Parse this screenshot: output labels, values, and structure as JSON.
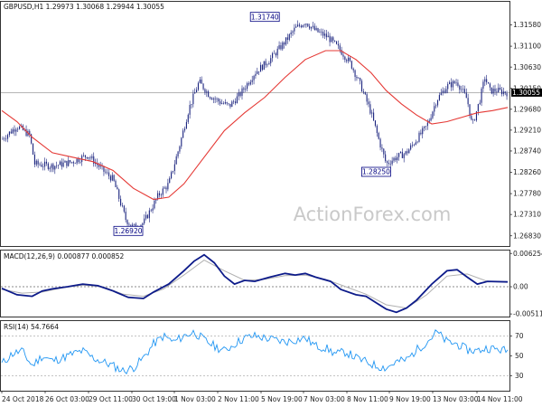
{
  "chart_data": [
    {
      "type": "candlestick",
      "symbol_info": "GBPUSD,H1  1.29973 1.30068 1.29944 1.30055",
      "watermark": "ActionForex.com",
      "ylim": [
        1.266,
        1.321
      ],
      "y_ticks": [
        "1.31580",
        "1.31100",
        "1.30630",
        "1.30150",
        "1.29680",
        "1.29210",
        "1.28740",
        "1.28260",
        "1.27780",
        "1.27310",
        "1.26830"
      ],
      "current_price": "1.30055",
      "price_labels": [
        {
          "text": "1.31740",
          "x": 0.52,
          "value": 1.3174
        },
        {
          "text": "1.28250",
          "x": 0.74,
          "value": 1.2825
        },
        {
          "text": "1.26920",
          "x": 0.25,
          "value": 1.2692
        }
      ],
      "price_path": [
        [
          0.0,
          1.29
        ],
        [
          0.03,
          1.293
        ],
        [
          0.055,
          1.291
        ],
        [
          0.065,
          1.2845
        ],
        [
          0.1,
          1.284
        ],
        [
          0.14,
          1.285
        ],
        [
          0.17,
          1.2865
        ],
        [
          0.2,
          1.283
        ],
        [
          0.22,
          1.281
        ],
        [
          0.245,
          1.272
        ],
        [
          0.26,
          1.2702
        ],
        [
          0.28,
          1.2712
        ],
        [
          0.31,
          1.2775
        ],
        [
          0.33,
          1.28
        ],
        [
          0.35,
          1.288
        ],
        [
          0.37,
          1.297
        ],
        [
          0.39,
          1.303
        ],
        [
          0.41,
          1.3
        ],
        [
          0.43,
          1.2985
        ],
        [
          0.45,
          1.2975
        ],
        [
          0.47,
          1.3
        ],
        [
          0.5,
          1.305
        ],
        [
          0.53,
          1.308
        ],
        [
          0.56,
          1.312
        ],
        [
          0.58,
          1.315
        ],
        [
          0.6,
          1.3165
        ],
        [
          0.62,
          1.3145
        ],
        [
          0.645,
          1.313
        ],
        [
          0.67,
          1.31
        ],
        [
          0.69,
          1.307
        ],
        [
          0.71,
          1.302
        ],
        [
          0.73,
          1.296
        ],
        [
          0.745,
          1.29
        ],
        [
          0.76,
          1.2845
        ],
        [
          0.78,
          1.286
        ],
        [
          0.8,
          1.287
        ],
        [
          0.82,
          1.29
        ],
        [
          0.84,
          1.293
        ],
        [
          0.86,
          1.299
        ],
        [
          0.88,
          1.302
        ],
        [
          0.9,
          1.303
        ],
        [
          0.92,
          1.299
        ],
        [
          0.93,
          1.293
        ],
        [
          0.945,
          1.299
        ],
        [
          0.955,
          1.304
        ],
        [
          0.965,
          1.301
        ],
        [
          0.98,
          1.301
        ],
        [
          1.0,
          1.3005
        ]
      ],
      "ma_path": [
        [
          0.0,
          1.2965
        ],
        [
          0.03,
          1.294
        ],
        [
          0.06,
          1.2905
        ],
        [
          0.1,
          1.287
        ],
        [
          0.14,
          1.286
        ],
        [
          0.18,
          1.285
        ],
        [
          0.22,
          1.283
        ],
        [
          0.26,
          1.279
        ],
        [
          0.3,
          1.2765
        ],
        [
          0.33,
          1.277
        ],
        [
          0.36,
          1.28
        ],
        [
          0.4,
          1.286
        ],
        [
          0.44,
          1.292
        ],
        [
          0.48,
          1.296
        ],
        [
          0.52,
          1.2995
        ],
        [
          0.56,
          1.304
        ],
        [
          0.6,
          1.308
        ],
        [
          0.64,
          1.31
        ],
        [
          0.67,
          1.31
        ],
        [
          0.7,
          1.308
        ],
        [
          0.73,
          1.305
        ],
        [
          0.76,
          1.301
        ],
        [
          0.79,
          1.298
        ],
        [
          0.82,
          1.2955
        ],
        [
          0.85,
          1.2935
        ],
        [
          0.88,
          1.294
        ],
        [
          0.91,
          1.295
        ],
        [
          0.94,
          1.296
        ],
        [
          0.97,
          1.2965
        ],
        [
          1.0,
          1.2972
        ]
      ]
    },
    {
      "type": "line",
      "title": "MACD(12,26,9) 0.000877 0.000852",
      "ylim": [
        -0.0056,
        0.0068
      ],
      "y_ticks": [
        "0.006254",
        "0.00",
        "-0.005112"
      ],
      "y_tick_values": [
        0.006254,
        0.0,
        -0.005112
      ],
      "zero_level": 0.0,
      "series": [
        {
          "values": [
            [
              0.0,
              -0.0003
            ],
            [
              0.03,
              -0.0015
            ],
            [
              0.06,
              -0.0018
            ],
            [
              0.08,
              -0.0008
            ],
            [
              0.1,
              -0.0004
            ],
            [
              0.13,
              0.0
            ],
            [
              0.16,
              0.0005
            ],
            [
              0.19,
              0.0002
            ],
            [
              0.22,
              -0.0008
            ],
            [
              0.25,
              -0.002
            ],
            [
              0.28,
              -0.0022
            ],
            [
              0.3,
              -0.001
            ],
            [
              0.33,
              0.0005
            ],
            [
              0.36,
              0.003
            ],
            [
              0.38,
              0.0048
            ],
            [
              0.4,
              0.006
            ],
            [
              0.42,
              0.0045
            ],
            [
              0.44,
              0.002
            ],
            [
              0.46,
              0.0005
            ],
            [
              0.48,
              0.0012
            ],
            [
              0.5,
              0.001
            ],
            [
              0.53,
              0.0018
            ],
            [
              0.56,
              0.0025
            ],
            [
              0.58,
              0.0022
            ],
            [
              0.6,
              0.0025
            ],
            [
              0.62,
              0.0018
            ],
            [
              0.65,
              0.001
            ],
            [
              0.67,
              -0.0005
            ],
            [
              0.7,
              -0.0015
            ],
            [
              0.72,
              -0.0018
            ],
            [
              0.74,
              -0.003
            ],
            [
              0.76,
              -0.0042
            ],
            [
              0.78,
              -0.0048
            ],
            [
              0.8,
              -0.004
            ],
            [
              0.82,
              -0.0025
            ],
            [
              0.85,
              0.0005
            ],
            [
              0.88,
              0.003
            ],
            [
              0.9,
              0.0032
            ],
            [
              0.92,
              0.0018
            ],
            [
              0.94,
              0.0005
            ],
            [
              0.96,
              0.001
            ],
            [
              1.0,
              0.0009
            ]
          ]
        },
        {
          "values": [
            [
              0.0,
              -0.0005
            ],
            [
              0.04,
              -0.0012
            ],
            [
              0.08,
              -0.001
            ],
            [
              0.12,
              -0.0002
            ],
            [
              0.16,
              0.0003
            ],
            [
              0.2,
              0.0
            ],
            [
              0.24,
              -0.0014
            ],
            [
              0.28,
              -0.0018
            ],
            [
              0.32,
              -0.0004
            ],
            [
              0.36,
              0.0022
            ],
            [
              0.4,
              0.005
            ],
            [
              0.44,
              0.003
            ],
            [
              0.48,
              0.0012
            ],
            [
              0.52,
              0.0014
            ],
            [
              0.56,
              0.0021
            ],
            [
              0.6,
              0.0022
            ],
            [
              0.64,
              0.0014
            ],
            [
              0.68,
              0.0
            ],
            [
              0.72,
              -0.0014
            ],
            [
              0.76,
              -0.0034
            ],
            [
              0.8,
              -0.004
            ],
            [
              0.84,
              -0.0015
            ],
            [
              0.88,
              0.002
            ],
            [
              0.92,
              0.0024
            ],
            [
              0.96,
              0.001
            ],
            [
              1.0,
              0.0009
            ]
          ]
        }
      ]
    },
    {
      "type": "line",
      "title": "RSI(14) 54.7664",
      "ylim": [
        15,
        85
      ],
      "y_ticks": [
        "70",
        "50",
        "30"
      ],
      "y_tick_values": [
        70,
        50,
        30
      ],
      "levels": [
        70,
        30
      ],
      "series": [
        {
          "values": [
            [
              0.0,
              42
            ],
            [
              0.02,
              52
            ],
            [
              0.04,
              55
            ],
            [
              0.06,
              40
            ],
            [
              0.08,
              50
            ],
            [
              0.1,
              45
            ],
            [
              0.12,
              48
            ],
            [
              0.14,
              52
            ],
            [
              0.16,
              55
            ],
            [
              0.18,
              48
            ],
            [
              0.2,
              44
            ],
            [
              0.22,
              40
            ],
            [
              0.24,
              35
            ],
            [
              0.26,
              38
            ],
            [
              0.28,
              48
            ],
            [
              0.3,
              62
            ],
            [
              0.32,
              70
            ],
            [
              0.34,
              64
            ],
            [
              0.36,
              70
            ],
            [
              0.38,
              74
            ],
            [
              0.4,
              66
            ],
            [
              0.42,
              60
            ],
            [
              0.44,
              55
            ],
            [
              0.46,
              62
            ],
            [
              0.48,
              68
            ],
            [
              0.5,
              70
            ],
            [
              0.52,
              68
            ],
            [
              0.54,
              66
            ],
            [
              0.56,
              64
            ],
            [
              0.58,
              66
            ],
            [
              0.6,
              68
            ],
            [
              0.62,
              60
            ],
            [
              0.64,
              58
            ],
            [
              0.66,
              52
            ],
            [
              0.68,
              54
            ],
            [
              0.7,
              48
            ],
            [
              0.72,
              44
            ],
            [
              0.74,
              40
            ],
            [
              0.76,
              38
            ],
            [
              0.78,
              44
            ],
            [
              0.8,
              46
            ],
            [
              0.82,
              56
            ],
            [
              0.84,
              64
            ],
            [
              0.86,
              74
            ],
            [
              0.88,
              64
            ],
            [
              0.9,
              62
            ],
            [
              0.92,
              56
            ],
            [
              0.94,
              55
            ],
            [
              0.96,
              58
            ],
            [
              1.0,
              55
            ]
          ]
        }
      ]
    }
  ],
  "x_axis_labels": [
    "24 Oct 2018",
    "26 Oct 03:00",
    "29 Oct 11:00",
    "30 Oct 19:00",
    "1 Nov 03:00",
    "2 Nov 11:00",
    "5 Nov 19:00",
    "7 Nov 03:00",
    "8 Nov 11:00",
    "9 Nov 19:00",
    "13 Nov 03:00",
    "14 Nov 11:00"
  ],
  "colors": {
    "candles": "#1a237e",
    "ma": "#e53935",
    "macd": "#0d1b8a",
    "signal": "#b0b0b0",
    "rsi": "#2196f3",
    "label_box": "#000080",
    "current_price_bg": "#000000"
  }
}
